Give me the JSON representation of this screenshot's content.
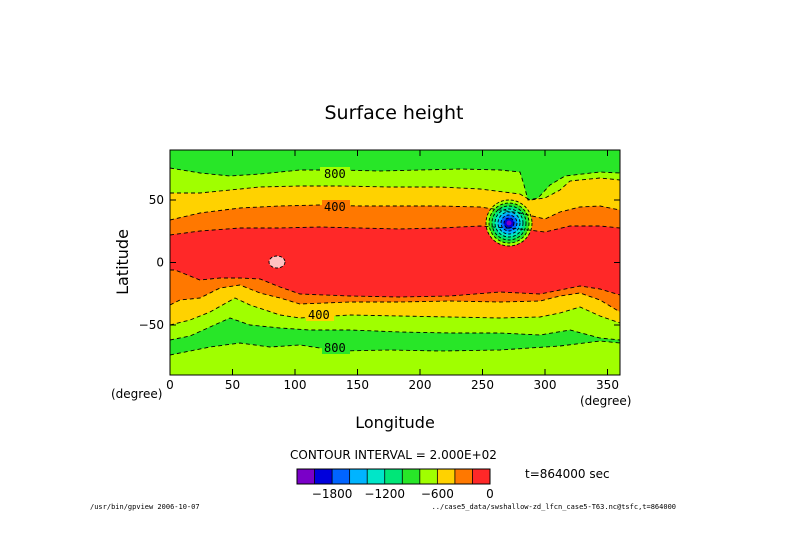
{
  "chart_data": {
    "type": "contour",
    "title": "Surface height",
    "xlabel": "Longitude",
    "ylabel": "Latitude",
    "x_unit": "(degree)",
    "y_unit": "(degree)",
    "xlim": [
      0,
      360
    ],
    "ylim": [
      -90,
      90
    ],
    "x_ticks": [
      0,
      50,
      100,
      150,
      200,
      250,
      300,
      350
    ],
    "y_ticks": [
      50,
      0,
      -50
    ],
    "contour_interval_text": "CONTOUR INTERVAL = 2.000E+02",
    "contour_labels": [
      "800",
      "400",
      "400",
      "800"
    ],
    "time_label": "t=864000 sec",
    "colorbar": {
      "colors": [
        "#7a00c8",
        "#0000dc",
        "#0064ff",
        "#00b4ff",
        "#00e6c8",
        "#00e678",
        "#28e628",
        "#a0ff00",
        "#ffd200",
        "#ff7800",
        "#ff2828"
      ],
      "tick_values": [
        -1800,
        -1200,
        -600,
        0
      ],
      "tick_labels": [
        "−1800",
        "−1200",
        "−600",
        "0"
      ],
      "vmin": -2200,
      "vmax": 0
    },
    "features": {
      "low_center": [
        270,
        30
      ],
      "high_center": [
        86,
        0
      ]
    }
  },
  "footer": {
    "left": "/usr/bin/gpview  2006-10-07",
    "right": "../case5_data/swshallow-zd_lfcn_case5-T63.nc@tsfc,t=864000"
  }
}
